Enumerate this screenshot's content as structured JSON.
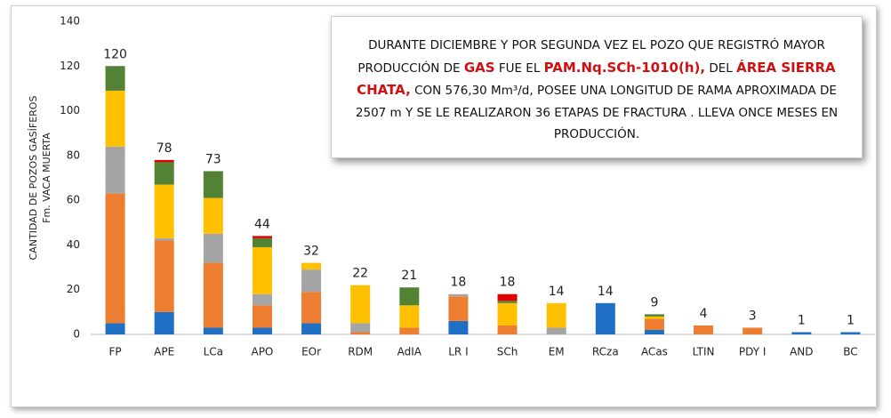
{
  "chart_data": {
    "type": "stacked_bar",
    "y_label": [
      "CANTIDAD DE POZOS GASÍFEROS",
      "Fm. VACA MUERTA"
    ],
    "categories": [
      "FP",
      "APE",
      "LCa",
      "APO",
      "EOr",
      "RDM",
      "AdIA",
      "LR I",
      "SCh",
      "EM",
      "RCza",
      "ACas",
      "LTIN",
      "PDY I",
      "AND",
      "BC"
    ],
    "series": [
      {
        "color": "#1f6fc5",
        "values": [
          5,
          10,
          3,
          3,
          5,
          0,
          0,
          6,
          0,
          0,
          14,
          2,
          0,
          0,
          1,
          1
        ]
      },
      {
        "color": "#ed7d31",
        "values": [
          58,
          32,
          29,
          10,
          14,
          1,
          3,
          11,
          4,
          0,
          0,
          5,
          4,
          3,
          0,
          0
        ]
      },
      {
        "color": "#a5a5a5",
        "values": [
          21,
          1,
          13,
          5,
          10,
          4,
          0,
          1,
          0,
          3,
          0,
          0,
          0,
          0,
          0,
          0
        ]
      },
      {
        "color": "#ffc000",
        "values": [
          25,
          24,
          16,
          21,
          3,
          17,
          10,
          0,
          10,
          11,
          0,
          1,
          0,
          0,
          0,
          0
        ]
      },
      {
        "color": "#548235",
        "values": [
          11,
          10,
          12,
          4,
          0,
          0,
          8,
          0,
          1,
          0,
          0,
          1,
          0,
          0,
          0,
          0
        ]
      },
      {
        "color": "#e00000",
        "values": [
          0,
          1,
          0,
          1,
          0,
          0,
          0,
          0,
          3,
          0,
          0,
          0,
          0,
          0,
          0,
          0
        ]
      }
    ],
    "totals": [
      120,
      78,
      73,
      44,
      32,
      22,
      21,
      18,
      18,
      14,
      14,
      9,
      4,
      3,
      1,
      1
    ],
    "ylim": [
      0,
      140
    ],
    "yticks": [
      0,
      20,
      40,
      60,
      80,
      100,
      120,
      140
    ],
    "grid": false,
    "annotation": [
      {
        "text": "DURANTE DICIEMBRE Y POR SEGUNDA VEZ  EL POZO QUE REGISTRÓ MAYOR PRODUCCIÓN DE "
      },
      {
        "text": "GAS",
        "color": "#d01010"
      },
      {
        "text": " FUE EL "
      },
      {
        "text": "PAM.Nq.SCh-1010(h),",
        "color": "#d01010"
      },
      {
        "text": " DEL "
      },
      {
        "text": "ÁREA SIERRA CHATA,",
        "color": "#d01010"
      },
      {
        "text": " CON 576,30 Mm³/d, POSEE UNA LONGITUD DE RAMA APROXIMADA DE 2507 m Y SE LE REALIZARON 36 ETAPAS DE FRACTURA . LLEVA ONCE MESES EN PRODUCCIÓN."
      }
    ]
  }
}
